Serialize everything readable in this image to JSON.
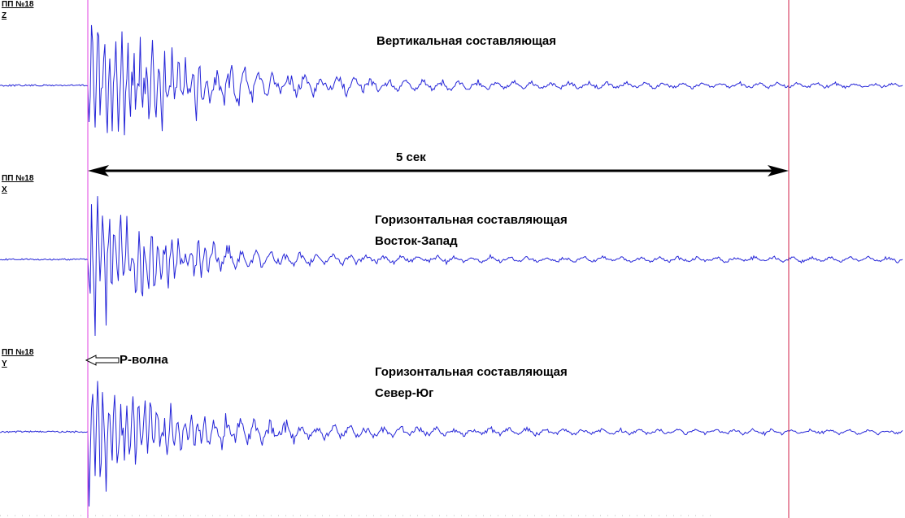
{
  "channels": [
    {
      "station": "ПП №18",
      "component": "Z",
      "caption": [
        "Вертикальная составляющая"
      ]
    },
    {
      "station": "ПП №18",
      "component": "X",
      "caption": [
        "Горизонтальная составляющая",
        "Восток-Запад"
      ]
    },
    {
      "station": "ПП №18",
      "component": "Y",
      "caption": [
        "Горизонтальная составляющая",
        "Север-Юг"
      ]
    }
  ],
  "annotations": {
    "duration": "5 сек",
    "p_wave": "P-волна"
  }
}
